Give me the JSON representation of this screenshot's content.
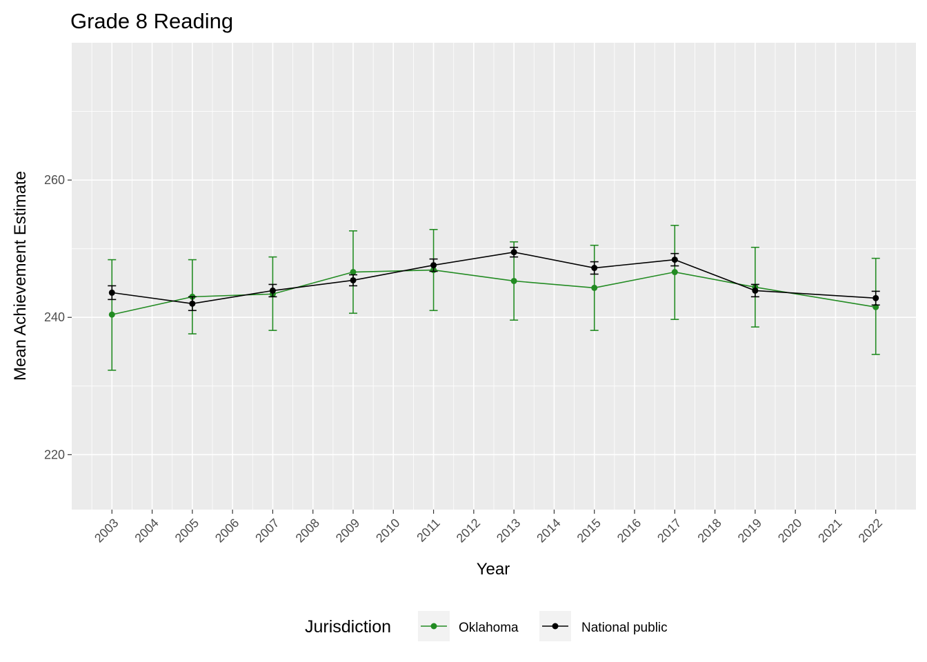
{
  "chart_data": {
    "type": "line",
    "title": "Grade 8 Reading",
    "xlabel": "Year",
    "ylabel": "Mean Achievement Estimate",
    "x": [
      2003,
      2005,
      2007,
      2009,
      2011,
      2013,
      2015,
      2017,
      2019,
      2022
    ],
    "x_ticks": [
      "2003",
      "2004",
      "2005",
      "2006",
      "2007",
      "2008",
      "2009",
      "2010",
      "2011",
      "2012",
      "2013",
      "2014",
      "2015",
      "2016",
      "2017",
      "2018",
      "2019",
      "2020",
      "2021",
      "2022"
    ],
    "x_range": [
      2002,
      2023
    ],
    "y_ticks": [
      220,
      240,
      260
    ],
    "ylim": [
      212,
      280
    ],
    "grid": true,
    "legend": {
      "title": "Jurisdiction",
      "position": "bottom"
    },
    "series": [
      {
        "name": "Oklahoma",
        "color": "#228b22",
        "values": [
          240.4,
          243.0,
          243.4,
          246.6,
          246.9,
          245.3,
          244.3,
          246.6,
          244.4,
          241.5
        ],
        "lower": [
          232.3,
          237.6,
          238.1,
          240.6,
          241.0,
          239.6,
          238.1,
          239.7,
          238.6,
          234.6
        ],
        "upper": [
          248.4,
          248.4,
          248.8,
          252.6,
          252.8,
          251.0,
          250.5,
          253.4,
          250.2,
          248.6
        ]
      },
      {
        "name": "National public",
        "color": "#000000",
        "values": [
          243.6,
          242.0,
          243.9,
          245.4,
          247.6,
          249.5,
          247.2,
          248.4,
          243.9,
          242.8
        ],
        "lower": [
          242.6,
          241.0,
          243.0,
          244.6,
          246.7,
          248.8,
          246.3,
          247.5,
          243.0,
          241.8
        ],
        "upper": [
          244.6,
          243.0,
          244.8,
          246.2,
          248.5,
          250.2,
          248.1,
          249.3,
          244.8,
          243.8
        ]
      }
    ]
  }
}
